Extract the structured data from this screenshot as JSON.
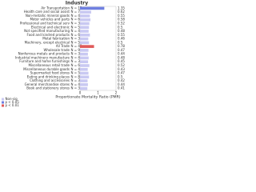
{
  "chart_data": {
    "type": "bar",
    "title": "Industry",
    "x_label": "Proportionate Mortality Ratio (PMR)",
    "categories": [
      "Air Transportation",
      "Health care and social assist",
      "Non-metallic mineral goods",
      "Motor vehicles and parts",
      "Professional and technical serv",
      "Electrical and electronic",
      "Not specified manufacturing",
      "Food and kindred products",
      "Metal fabrication",
      "Machinery, except electrical",
      "All Trade",
      "Wholesale trade",
      "Nonferrous metals and products",
      "Industrial machinery manufacture",
      "Furniture and home furnishings",
      "Miscellaneous retail trade",
      "Miscellaneous durable goods",
      "Supermarket food stores",
      "Eating and drinking places",
      "Clothing and accessories",
      "General merchandise stores",
      "Book and stationery stores"
    ],
    "n_labels": [
      "N = 12",
      "N = 7",
      "N = 4",
      "N = 6",
      "N = 3",
      "N = 5",
      "N = 4",
      "N = 6",
      "N = 3",
      "N = 5",
      "N = 48",
      "N = 9",
      "N = 3",
      "N = 4",
      "N = 3",
      "N = 6",
      "N = 4",
      "N = 5",
      "N = 8",
      "N = 3",
      "N = 4",
      "N = 3"
    ],
    "values": [
      1.35,
      0.62,
      0.55,
      0.58,
      0.52,
      0.5,
      0.48,
      0.55,
      0.46,
      0.5,
      0.78,
      0.47,
      0.44,
      0.48,
      0.45,
      0.52,
      0.43,
      0.47,
      0.5,
      0.42,
      0.44,
      0.41
    ],
    "colors": [
      "#6f7fe0",
      "#c9c9f2",
      "#c9c9f2",
      "#c9c9f2",
      "#c9c9f2",
      "#c9c9f2",
      "#c9c9f2",
      "#c9c9f2",
      "#c9c9f2",
      "#c9c9f2",
      "#e05a5a",
      "#c9c9f2",
      "#c9c9f2",
      "#c9c9f2",
      "#c9c9f2",
      "#c9c9f2",
      "#c9c9f2",
      "#c9c9f2",
      "#c9c9f2",
      "#c9c9f2",
      "#c9c9f2",
      "#c9c9f2"
    ],
    "legend": [
      {
        "name": "Non-sig",
        "color": "#c9c9f2"
      },
      {
        "name": "p < 0.05",
        "color": "#6f7fe0"
      },
      {
        "name": "p < 0.01",
        "color": "#e05a5a"
      }
    ],
    "xlim": [
      0,
      2
    ],
    "xticks": [
      0,
      1,
      2
    ]
  }
}
